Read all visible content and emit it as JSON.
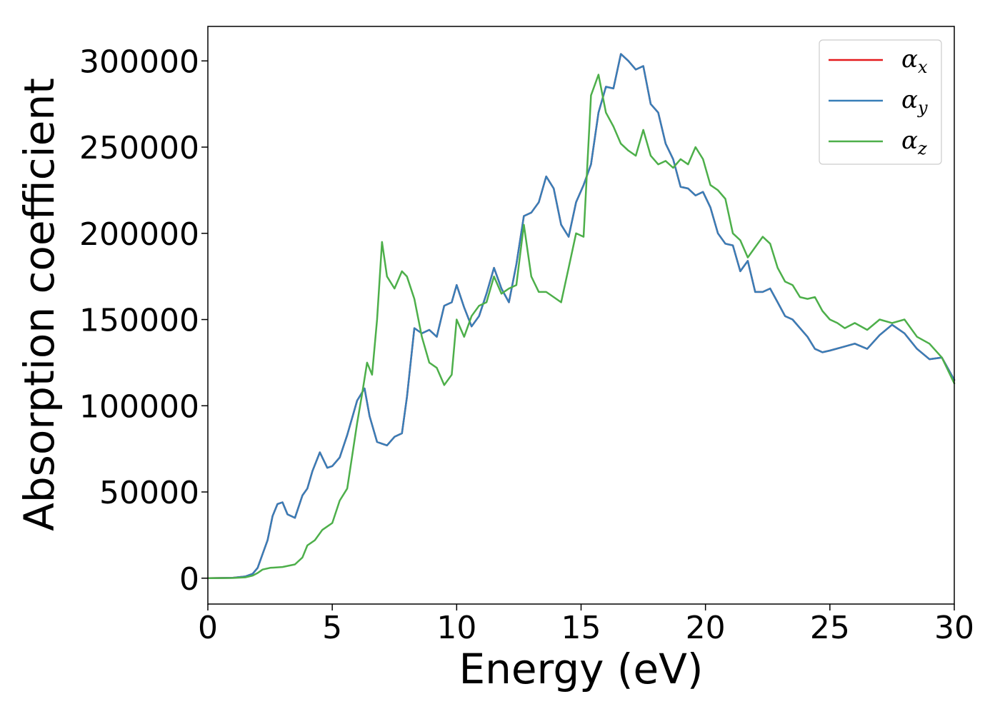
{
  "chart_data": {
    "type": "line",
    "xlabel": "Energy (eV)",
    "ylabel": "Absorption coefficient",
    "xlim": [
      0,
      30
    ],
    "ylim": [
      -15000,
      320000
    ],
    "x_ticks": [
      0,
      5,
      10,
      15,
      20,
      25,
      30
    ],
    "x_tick_labels": [
      "0",
      "5",
      "10",
      "15",
      "20",
      "25",
      "30"
    ],
    "y_ticks": [
      0,
      50000,
      100000,
      150000,
      200000,
      250000,
      300000
    ],
    "y_tick_labels": [
      "0",
      "50000",
      "100000",
      "150000",
      "200000",
      "250000",
      "300000"
    ],
    "grid": false,
    "legend_position": "top-right",
    "series": [
      {
        "name": "α_x",
        "label_base": "α",
        "label_sub": "x",
        "color": "#e41a1c",
        "x": [
          0,
          1,
          1.5,
          1.8,
          2.0,
          2.2,
          2.4,
          2.6,
          2.8,
          3.0,
          3.2,
          3.5,
          3.8,
          4.0,
          4.2,
          4.5,
          4.8,
          5.0,
          5.3,
          5.6,
          6.0,
          6.3,
          6.5,
          6.8,
          7.0,
          7.2,
          7.5,
          7.8,
          8.0,
          8.3,
          8.6,
          8.9,
          9.2,
          9.5,
          9.8,
          10.0,
          10.3,
          10.6,
          10.9,
          11.2,
          11.5,
          11.8,
          12.1,
          12.4,
          12.7,
          13.0,
          13.3,
          13.6,
          13.9,
          14.2,
          14.5,
          14.8,
          15.1,
          15.4,
          15.7,
          16.0,
          16.3,
          16.6,
          16.9,
          17.2,
          17.5,
          17.8,
          18.1,
          18.4,
          18.7,
          19.0,
          19.3,
          19.6,
          19.9,
          20.2,
          20.5,
          20.8,
          21.1,
          21.4,
          21.7,
          22.0,
          22.3,
          22.6,
          22.9,
          23.2,
          23.5,
          23.8,
          24.1,
          24.4,
          24.7,
          25.0,
          25.5,
          26.0,
          26.5,
          27.0,
          27.5,
          28.0,
          28.5,
          29.0,
          29.5,
          30.0
        ],
        "y": [
          0,
          200,
          1000,
          2500,
          6000,
          14000,
          22000,
          36000,
          43000,
          44000,
          37000,
          35000,
          48000,
          52000,
          62000,
          73000,
          64000,
          65000,
          70000,
          83000,
          103000,
          110000,
          94000,
          79000,
          78000,
          77000,
          82000,
          84000,
          105000,
          145000,
          142000,
          144000,
          140000,
          158000,
          160000,
          170000,
          157000,
          146000,
          152000,
          165000,
          180000,
          168000,
          160000,
          182000,
          210000,
          212000,
          218000,
          233000,
          226000,
          205000,
          198000,
          218000,
          228000,
          240000,
          270000,
          285000,
          284000,
          304000,
          300000,
          295000,
          297000,
          275000,
          270000,
          252000,
          243000,
          227000,
          226000,
          222000,
          224000,
          215000,
          200000,
          194000,
          193000,
          178000,
          184000,
          166000,
          166000,
          168000,
          160000,
          152000,
          150000,
          145000,
          140000,
          133000,
          131000,
          132000,
          134000,
          136000,
          133000,
          141000,
          147000,
          142000,
          133000,
          127000,
          128000,
          115000
        ]
      },
      {
        "name": "α_y",
        "label_base": "α",
        "label_sub": "y",
        "color": "#377eb8",
        "x": [
          0,
          1,
          1.5,
          1.8,
          2.0,
          2.2,
          2.4,
          2.6,
          2.8,
          3.0,
          3.2,
          3.5,
          3.8,
          4.0,
          4.2,
          4.5,
          4.8,
          5.0,
          5.3,
          5.6,
          6.0,
          6.3,
          6.5,
          6.8,
          7.0,
          7.2,
          7.5,
          7.8,
          8.0,
          8.3,
          8.6,
          8.9,
          9.2,
          9.5,
          9.8,
          10.0,
          10.3,
          10.6,
          10.9,
          11.2,
          11.5,
          11.8,
          12.1,
          12.4,
          12.7,
          13.0,
          13.3,
          13.6,
          13.9,
          14.2,
          14.5,
          14.8,
          15.1,
          15.4,
          15.7,
          16.0,
          16.3,
          16.6,
          16.9,
          17.2,
          17.5,
          17.8,
          18.1,
          18.4,
          18.7,
          19.0,
          19.3,
          19.6,
          19.9,
          20.2,
          20.5,
          20.8,
          21.1,
          21.4,
          21.7,
          22.0,
          22.3,
          22.6,
          22.9,
          23.2,
          23.5,
          23.8,
          24.1,
          24.4,
          24.7,
          25.0,
          25.5,
          26.0,
          26.5,
          27.0,
          27.5,
          28.0,
          28.5,
          29.0,
          29.5,
          30.0
        ],
        "y": [
          0,
          200,
          1000,
          2500,
          6000,
          14000,
          22000,
          36000,
          43000,
          44000,
          37000,
          35000,
          48000,
          52000,
          62000,
          73000,
          64000,
          65000,
          70000,
          83000,
          103000,
          110000,
          94000,
          79000,
          78000,
          77000,
          82000,
          84000,
          105000,
          145000,
          142000,
          144000,
          140000,
          158000,
          160000,
          170000,
          157000,
          146000,
          152000,
          165000,
          180000,
          168000,
          160000,
          182000,
          210000,
          212000,
          218000,
          233000,
          226000,
          205000,
          198000,
          218000,
          228000,
          240000,
          270000,
          285000,
          284000,
          304000,
          300000,
          295000,
          297000,
          275000,
          270000,
          252000,
          243000,
          227000,
          226000,
          222000,
          224000,
          215000,
          200000,
          194000,
          193000,
          178000,
          184000,
          166000,
          166000,
          168000,
          160000,
          152000,
          150000,
          145000,
          140000,
          133000,
          131000,
          132000,
          134000,
          136000,
          133000,
          141000,
          147000,
          142000,
          133000,
          127000,
          128000,
          115000
        ]
      },
      {
        "name": "α_z",
        "label_base": "α",
        "label_sub": "z",
        "color": "#4daf4a",
        "x": [
          0,
          1,
          1.5,
          1.8,
          2.0,
          2.2,
          2.5,
          3.0,
          3.5,
          3.8,
          4.0,
          4.3,
          4.6,
          5.0,
          5.3,
          5.6,
          6.0,
          6.2,
          6.4,
          6.6,
          6.8,
          7.0,
          7.2,
          7.5,
          7.8,
          8.0,
          8.3,
          8.6,
          8.9,
          9.2,
          9.5,
          9.8,
          10.0,
          10.3,
          10.6,
          10.9,
          11.2,
          11.5,
          11.8,
          12.1,
          12.4,
          12.7,
          13.0,
          13.3,
          13.6,
          13.9,
          14.2,
          14.5,
          14.8,
          15.1,
          15.4,
          15.7,
          16.0,
          16.3,
          16.6,
          16.9,
          17.2,
          17.5,
          17.8,
          18.1,
          18.4,
          18.7,
          19.0,
          19.3,
          19.6,
          19.9,
          20.2,
          20.5,
          20.8,
          21.1,
          21.4,
          21.7,
          22.0,
          22.3,
          22.6,
          22.9,
          23.2,
          23.5,
          23.8,
          24.1,
          24.4,
          24.7,
          25.0,
          25.3,
          25.6,
          26.0,
          26.5,
          27.0,
          27.5,
          28.0,
          28.5,
          29.0,
          29.5,
          30.0
        ],
        "y": [
          0,
          100,
          500,
          1500,
          3000,
          5000,
          6000,
          6500,
          8000,
          12000,
          19000,
          22000,
          28000,
          32000,
          45000,
          52000,
          90000,
          107000,
          125000,
          118000,
          150000,
          195000,
          175000,
          168000,
          178000,
          175000,
          162000,
          140000,
          125000,
          122000,
          112000,
          118000,
          150000,
          140000,
          152000,
          158000,
          160000,
          175000,
          165000,
          168000,
          170000,
          205000,
          175000,
          166000,
          166000,
          163000,
          160000,
          180000,
          200000,
          198000,
          280000,
          292000,
          270000,
          262000,
          252000,
          248000,
          245000,
          260000,
          245000,
          240000,
          242000,
          238000,
          243000,
          240000,
          250000,
          243000,
          228000,
          225000,
          220000,
          200000,
          196000,
          186000,
          192000,
          198000,
          194000,
          180000,
          172000,
          170000,
          163000,
          162000,
          163000,
          155000,
          150000,
          148000,
          145000,
          148000,
          144000,
          150000,
          148000,
          150000,
          140000,
          136000,
          128000,
          113000
        ]
      }
    ]
  }
}
